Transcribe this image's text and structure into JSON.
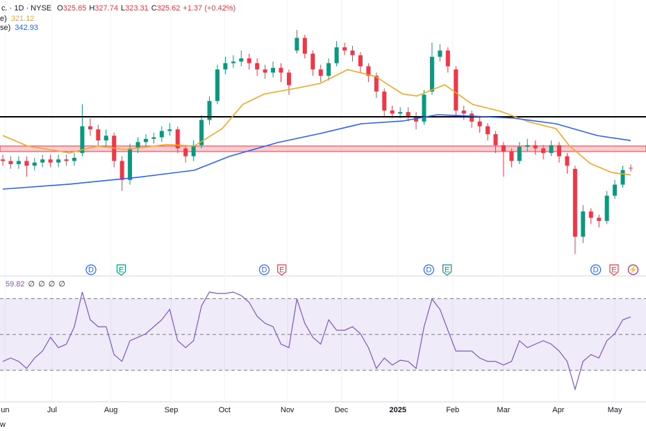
{
  "chart_data": {
    "type": "candlestick",
    "header": {
      "symbol": "c. · 1D · NYSE",
      "ohlc": [
        {
          "label": "O",
          "value": 325.65
        },
        {
          "label": "H",
          "value": 327.74
        },
        {
          "label": "L",
          "value": 323.31
        },
        {
          "label": "C",
          "value": 325.62
        }
      ],
      "change": "+1.37 (+0.42%)"
    },
    "ylim": [
      258,
      432
    ],
    "up_color": "#089981",
    "down_color": "#f23645",
    "open": [
      331,
      330,
      328,
      330,
      327,
      329,
      331,
      329,
      331,
      330,
      335,
      352,
      350,
      343,
      346,
      330,
      318,
      338,
      342,
      344,
      345,
      349,
      350,
      338,
      333,
      340,
      356,
      368,
      388,
      392,
      393,
      395,
      392,
      388,
      386,
      389,
      386,
      400,
      408,
      398,
      388,
      384,
      392,
      402,
      400,
      397,
      390,
      384,
      374,
      362,
      360,
      361,
      358,
      355,
      374,
      396,
      400,
      388,
      362,
      360,
      355,
      352,
      347,
      340,
      336,
      330,
      339,
      340,
      338,
      335,
      340,
      333,
      325,
      282,
      298,
      294,
      292,
      308,
      315,
      325.65
    ],
    "high": [
      334,
      333,
      333,
      333,
      332,
      334,
      334,
      334,
      334,
      335,
      366,
      357,
      353,
      350,
      348,
      333,
      341,
      345,
      347,
      348,
      352,
      354,
      352,
      340,
      343,
      359,
      371,
      391,
      396,
      397,
      400,
      398,
      395,
      391,
      393,
      392,
      388,
      413,
      410,
      400,
      391,
      395,
      406,
      405,
      403,
      399,
      392,
      386,
      376,
      365,
      364,
      364,
      361,
      375,
      405,
      404,
      402,
      390,
      365,
      362,
      358,
      354,
      349,
      342,
      338,
      342,
      344,
      343,
      340,
      343,
      342,
      335,
      327,
      302,
      300,
      296,
      311,
      318,
      327,
      327.74
    ],
    "low": [
      327,
      325,
      325,
      320,
      324,
      326,
      326,
      326,
      327,
      327,
      333,
      346,
      339,
      339,
      326,
      311,
      315,
      335,
      339,
      341,
      342,
      346,
      335,
      329,
      330,
      338,
      353,
      366,
      385,
      389,
      390,
      388,
      384,
      382,
      383,
      380,
      372,
      398,
      395,
      384,
      380,
      381,
      390,
      397,
      393,
      386,
      380,
      370,
      358,
      357,
      357,
      355,
      350,
      353,
      372,
      393,
      386,
      358,
      356,
      351,
      348,
      343,
      335,
      320,
      326,
      328,
      336,
      334,
      331,
      333,
      329,
      322,
      271,
      278,
      290,
      288,
      290,
      306,
      313,
      323.31
    ],
    "close": [
      330,
      328,
      330,
      327,
      329,
      331,
      329,
      331,
      330,
      332,
      352,
      350,
      343,
      346,
      330,
      318,
      338,
      342,
      344,
      345,
      349,
      350,
      338,
      333,
      340,
      356,
      368,
      388,
      392,
      393,
      395,
      392,
      388,
      386,
      389,
      386,
      378,
      408,
      398,
      388,
      384,
      392,
      402,
      400,
      397,
      390,
      384,
      374,
      362,
      360,
      361,
      358,
      355,
      372,
      396,
      400,
      390,
      362,
      360,
      355,
      352,
      347,
      340,
      336,
      330,
      339,
      340,
      338,
      335,
      340,
      333,
      327,
      282,
      298,
      294,
      292,
      308,
      315,
      324.25,
      325.62
    ],
    "series": [
      {
        "name": "e)",
        "color": "#f5a623",
        "x": [
          0,
          3.1,
          8.4,
          11.9,
          15.4,
          20.6,
          24.1,
          27.6,
          30.2,
          32.9,
          36.4,
          39.9,
          43.4,
          46.9,
          50.3,
          52.1,
          55.6,
          59.1,
          62.6,
          66.1,
          69.6,
          71.3,
          73.9,
          76.6,
          79
        ],
        "values": [
          346.1,
          339.5,
          335.1,
          339.5,
          337.3,
          340.4,
          339.5,
          350.5,
          365.9,
          372.5,
          375.6,
          379.1,
          387.9,
          383.5,
          372.5,
          371.2,
          378.3,
          365.9,
          361.5,
          354.9,
          350.5,
          339.5,
          328.5,
          322.7,
          321.12
        ]
      },
      {
        "name": "se)",
        "color": "#2962ff",
        "x": [
          0,
          8.4,
          17.1,
          24.1,
          28.5,
          34.6,
          39.9,
          45.1,
          50.3,
          54.7,
          59.1,
          64.3,
          69.6,
          74.8,
          79
        ],
        "values": [
          312.2,
          315.3,
          319.7,
          324.1,
          332.9,
          341.7,
          347.4,
          353.6,
          355.3,
          359.3,
          358.4,
          357.1,
          353.6,
          346.1,
          342.93
        ]
      }
    ],
    "levels": [
      {
        "value": 358,
        "color": "#000000"
      }
    ],
    "zones": [
      {
        "from": 336,
        "to": 339.5,
        "color": "#f23645"
      }
    ],
    "events": [
      {
        "label": "D",
        "x": 11.1,
        "color": "#2962ff"
      },
      {
        "label": "E",
        "x": 14.9,
        "color": "#089981"
      },
      {
        "label": "D",
        "x": 32.9,
        "color": "#2962ff"
      },
      {
        "label": "E",
        "x": 35.1,
        "color": "#f23645"
      },
      {
        "label": "D",
        "x": 53.6,
        "color": "#2962ff"
      },
      {
        "label": "E",
        "x": 55.9,
        "color": "#089981"
      },
      {
        "label": "D",
        "x": 74.6,
        "color": "#2962ff"
      },
      {
        "label": "E",
        "x": 76.9,
        "color": "#f23645"
      },
      {
        "label": "⚡",
        "x": 79.3,
        "color": "#9c27b0"
      }
    ],
    "rsi": {
      "color": "#7e57c2",
      "ylim": [
        13.5,
        81.5
      ],
      "bands": [
        30,
        50,
        70
      ],
      "placeholders": [
        "∅",
        "∅",
        "∅",
        "∅"
      ],
      "values": [
        34.9,
        36.8,
        34.9,
        31,
        36.8,
        40.7,
        48.4,
        42.6,
        44.6,
        54.3,
        73.7,
        58.2,
        54.3,
        54.3,
        38.7,
        34.9,
        46.5,
        48.4,
        50.4,
        54.3,
        58.2,
        64,
        46.5,
        42.6,
        46.5,
        65.9,
        73.7,
        72.9,
        72.9,
        73.7,
        71.7,
        67.9,
        60.1,
        56.2,
        54.3,
        44.6,
        42.6,
        69.8,
        56.2,
        48.4,
        44.6,
        58.2,
        52.3,
        52.3,
        54.3,
        50.4,
        42.6,
        31,
        36.8,
        32.9,
        35.6,
        34.9,
        31,
        54.3,
        69.8,
        64,
        52.3,
        40.7,
        40.7,
        40.7,
        36.8,
        34.9,
        34.9,
        32.9,
        34.9,
        46.5,
        42.6,
        44.6,
        46.5,
        44.6,
        40.7,
        34.9,
        19.3,
        34.9,
        38.7,
        36.8,
        46.5,
        50.4,
        58.2,
        59.82
      ]
    },
    "xticks": [
      {
        "value": 0.3,
        "label": "un"
      },
      {
        "value": 6.2,
        "label": "Jul"
      },
      {
        "value": 13.6,
        "label": "Aug"
      },
      {
        "value": 21.2,
        "label": "Sep"
      },
      {
        "value": 27.9,
        "label": "Oct"
      },
      {
        "value": 35.8,
        "label": "Nov"
      },
      {
        "value": 42.6,
        "label": "Dec"
      },
      {
        "value": 49.7,
        "label": "2025"
      },
      {
        "value": 56.6,
        "label": "Feb"
      },
      {
        "value": 63,
        "label": "Mar"
      },
      {
        "value": 69.9,
        "label": "Apr"
      },
      {
        "value": 77,
        "label": "May"
      }
    ],
    "footer": "w"
  }
}
